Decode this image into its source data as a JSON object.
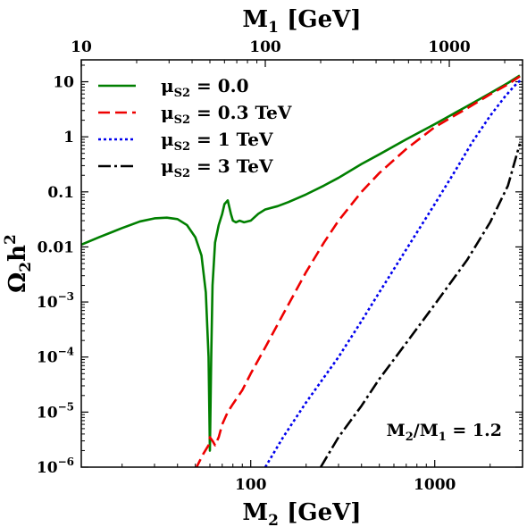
{
  "chart_data": {
    "type": "line",
    "xscale": "log",
    "yscale": "log",
    "x_label_bottom": {
      "main": "M",
      "sub": "2",
      "unit": " [GeV]"
    },
    "x_label_top": {
      "main": "M",
      "sub": "1",
      "unit": " [GeV]"
    },
    "y_label": {
      "main": "Ω",
      "sub": "2",
      "main2": "h",
      "sup": "2"
    },
    "xlim": [
      12,
      3000
    ],
    "ylim": [
      1e-06,
      25
    ],
    "top_axis_ratio": 1.2,
    "bottom_ticks": [
      {
        "value": 100,
        "label": "100"
      },
      {
        "value": 1000,
        "label": "1000"
      }
    ],
    "top_ticks": [
      {
        "value": 10,
        "label": "10"
      },
      {
        "value": 100,
        "label": "100"
      },
      {
        "value": 1000,
        "label": "1000"
      }
    ],
    "y_ticks": [
      {
        "value": 10,
        "label": "10"
      },
      {
        "value": 1,
        "label": "1"
      },
      {
        "value": 0.1,
        "label": "0.1"
      },
      {
        "value": 0.01,
        "label": "0.01"
      },
      {
        "value": 0.001,
        "base": "10",
        "exp": "−3"
      },
      {
        "value": 0.0001,
        "base": "10",
        "exp": "−4"
      },
      {
        "value": 1e-05,
        "base": "10",
        "exp": "−5"
      },
      {
        "value": 1e-06,
        "base": "10",
        "exp": "−6"
      }
    ],
    "annotation": {
      "main": "M",
      "sub": "2",
      "mid": "/M",
      "sub2": "1",
      "tail": " = 1.2"
    },
    "legend_position": "top-left",
    "series": [
      {
        "name": "μ",
        "name_sub": "S2",
        "name_tail": " = 0.0",
        "color": "#007f00",
        "dash": "",
        "points": [
          [
            12,
            0.011
          ],
          [
            15,
            0.015
          ],
          [
            20,
            0.022
          ],
          [
            25,
            0.029
          ],
          [
            30,
            0.033
          ],
          [
            35,
            0.034
          ],
          [
            40,
            0.032
          ],
          [
            45,
            0.025
          ],
          [
            50,
            0.015
          ],
          [
            54,
            0.007
          ],
          [
            57,
            0.0015
          ],
          [
            59,
            0.0001
          ],
          [
            60,
            2e-06
          ],
          [
            61,
            0.0001
          ],
          [
            62,
            0.002
          ],
          [
            64,
            0.012
          ],
          [
            67,
            0.025
          ],
          [
            70,
            0.04
          ],
          [
            72,
            0.06
          ],
          [
            75,
            0.07
          ],
          [
            78,
            0.04
          ],
          [
            80,
            0.03
          ],
          [
            83,
            0.028
          ],
          [
            87,
            0.03
          ],
          [
            92,
            0.028
          ],
          [
            100,
            0.03
          ],
          [
            110,
            0.04
          ],
          [
            120,
            0.048
          ],
          [
            140,
            0.055
          ],
          [
            160,
            0.065
          ],
          [
            200,
            0.09
          ],
          [
            250,
            0.13
          ],
          [
            300,
            0.18
          ],
          [
            400,
            0.32
          ],
          [
            500,
            0.48
          ],
          [
            700,
            0.9
          ],
          [
            1000,
            1.7
          ],
          [
            1500,
            3.6
          ],
          [
            2000,
            6.2
          ],
          [
            2500,
            9.5
          ],
          [
            2900,
            13
          ]
        ]
      },
      {
        "name": "μ",
        "name_sub": "S2",
        "name_tail": " = 0.3 TeV",
        "color": "#ee0000",
        "dash": "13,6",
        "points": [
          [
            50,
            9e-07
          ],
          [
            55,
            1.7e-06
          ],
          [
            59,
            2.5e-06
          ],
          [
            60,
            3.5e-06
          ],
          [
            62,
            3e-06
          ],
          [
            64,
            2.5e-06
          ],
          [
            67,
            3.5e-06
          ],
          [
            70,
            6e-06
          ],
          [
            75,
            1e-05
          ],
          [
            80,
            1.4e-05
          ],
          [
            90,
            2.5e-05
          ],
          [
            100,
            5e-05
          ],
          [
            120,
            0.00015
          ],
          [
            150,
            0.0006
          ],
          [
            200,
            0.0035
          ],
          [
            250,
            0.012
          ],
          [
            300,
            0.03
          ],
          [
            400,
            0.1
          ],
          [
            500,
            0.22
          ],
          [
            700,
            0.6
          ],
          [
            1000,
            1.5
          ],
          [
            1500,
            3.3
          ],
          [
            2000,
            5.9
          ],
          [
            2500,
            9
          ],
          [
            2900,
            12.5
          ]
        ]
      },
      {
        "name": "μ",
        "name_sub": "S2",
        "name_tail": " = 1 TeV",
        "color": "#0000ee",
        "dash": "3,3",
        "points": [
          [
            120,
            1e-06
          ],
          [
            150,
            3.5e-06
          ],
          [
            200,
            1.5e-05
          ],
          [
            300,
            0.0001
          ],
          [
            400,
            0.00045
          ],
          [
            500,
            0.0015
          ],
          [
            700,
            0.009
          ],
          [
            1000,
            0.06
          ],
          [
            1300,
            0.25
          ],
          [
            1600,
            0.8
          ],
          [
            2000,
            2.4
          ],
          [
            2400,
            5.3
          ],
          [
            2700,
            8.3
          ],
          [
            2950,
            11
          ]
        ]
      },
      {
        "name": "μ",
        "name_sub": "S2",
        "name_tail": " = 3 TeV",
        "color": "#000000",
        "dash": "14,4,3,4",
        "points": [
          [
            240,
            1e-06
          ],
          [
            300,
            3.5e-06
          ],
          [
            400,
            1.3e-05
          ],
          [
            500,
            4e-05
          ],
          [
            700,
            0.00018
          ],
          [
            1000,
            0.0009
          ],
          [
            1500,
            0.0058
          ],
          [
            2000,
            0.028
          ],
          [
            2500,
            0.13
          ],
          [
            2900,
            0.75
          ]
        ]
      }
    ]
  }
}
